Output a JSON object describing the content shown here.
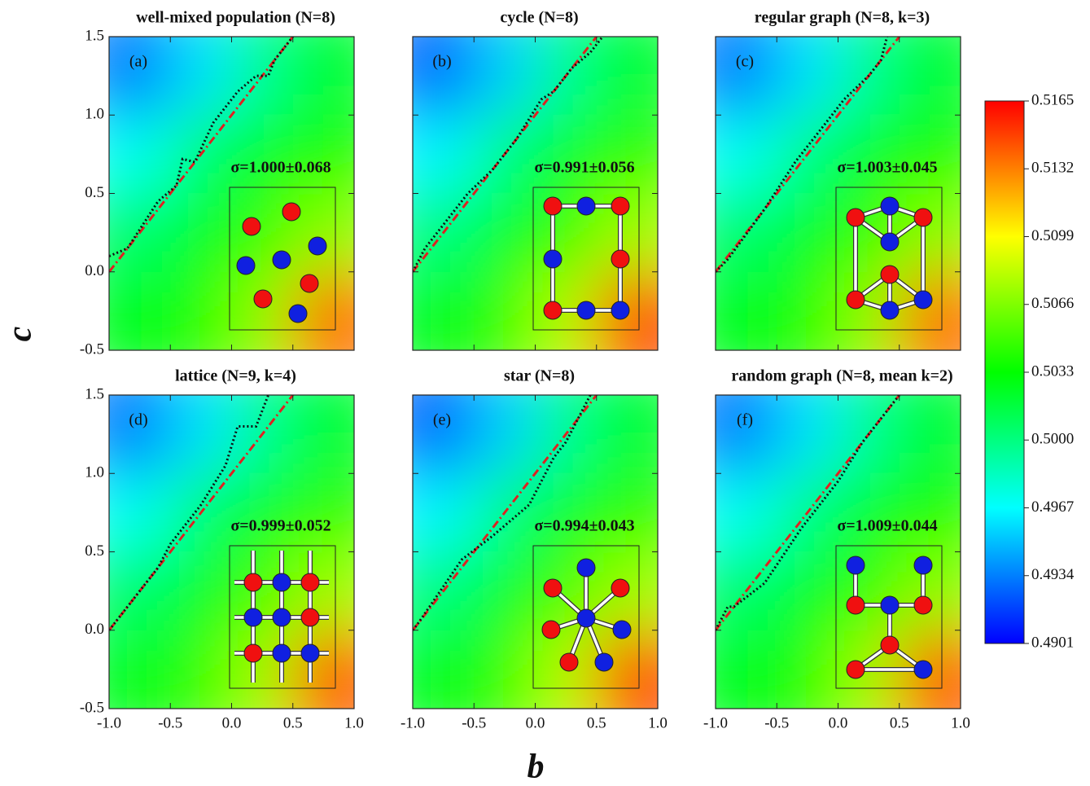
{
  "chart_data": [
    {
      "type": "heatmap",
      "title": "well-mixed population (N=8)",
      "panel": "(a)",
      "annotation": "σ=1.000±0.068",
      "z": [
        [
          0.4935,
          0.496,
          0.4995,
          0.502
        ],
        [
          0.497,
          0.5005,
          0.5025,
          0.504
        ],
        [
          0.5005,
          0.5025,
          0.5045,
          0.507
        ],
        [
          0.5025,
          0.504,
          0.507,
          0.5135
        ]
      ],
      "lines": [
        {
          "color": "#e02020",
          "style": "dashdot",
          "x": [
            -1,
            0.5
          ],
          "y": [
            0,
            1.5
          ]
        },
        {
          "color": "#111111",
          "style": "dotted",
          "x": [
            -1,
            -0.85,
            -0.6,
            -0.45,
            -0.4,
            -0.3,
            -0.15,
            0.05,
            0.2,
            0.3,
            0.35,
            0.5
          ],
          "y": [
            0.1,
            0.15,
            0.45,
            0.55,
            0.72,
            0.7,
            0.95,
            1.15,
            1.25,
            1.25,
            1.35,
            1.5
          ]
        }
      ]
    },
    {
      "type": "heatmap",
      "title": "cycle (N=8)",
      "panel": "(b)",
      "annotation": "σ=0.991±0.056",
      "z": [
        [
          0.493,
          0.4955,
          0.4995,
          0.502
        ],
        [
          0.4965,
          0.5,
          0.5025,
          0.5045
        ],
        [
          0.5,
          0.5025,
          0.5045,
          0.5075
        ],
        [
          0.5025,
          0.5045,
          0.508,
          0.5145
        ]
      ],
      "lines": [
        {
          "color": "#e02020",
          "style": "dashdot",
          "x": [
            -1,
            0.5
          ],
          "y": [
            0,
            1.5
          ]
        },
        {
          "color": "#111111",
          "style": "dotted",
          "x": [
            -1,
            -0.9,
            -0.55,
            -0.35,
            -0.15,
            0.05,
            0.15,
            0.3,
            0.45,
            0.55
          ],
          "y": [
            0,
            0.15,
            0.5,
            0.65,
            0.85,
            1.1,
            1.15,
            1.3,
            1.4,
            1.5
          ]
        }
      ]
    },
    {
      "type": "heatmap",
      "title": "regular graph (N=8, k=3)",
      "panel": "(c)",
      "annotation": "σ=1.003±0.045",
      "z": [
        [
          0.4935,
          0.496,
          0.4995,
          0.502
        ],
        [
          0.497,
          0.5,
          0.5025,
          0.504
        ],
        [
          0.5005,
          0.5025,
          0.5045,
          0.507
        ],
        [
          0.5025,
          0.504,
          0.507,
          0.5135
        ]
      ],
      "lines": [
        {
          "color": "#e02020",
          "style": "dashdot",
          "x": [
            -1,
            0.5
          ],
          "y": [
            0,
            1.5
          ]
        },
        {
          "color": "#111111",
          "style": "dotted",
          "x": [
            -1,
            -0.9,
            -0.6,
            -0.35,
            -0.1,
            0.05,
            0.25,
            0.35,
            0.4
          ],
          "y": [
            0,
            0.08,
            0.4,
            0.7,
            0.95,
            1.1,
            1.25,
            1.35,
            1.5
          ]
        }
      ]
    },
    {
      "type": "heatmap",
      "title": "lattice (N=9, k=4)",
      "panel": "(d)",
      "annotation": "σ=0.999±0.052",
      "z": [
        [
          0.4935,
          0.496,
          0.4995,
          0.502
        ],
        [
          0.497,
          0.5005,
          0.5025,
          0.5045
        ],
        [
          0.5005,
          0.5025,
          0.505,
          0.5075
        ],
        [
          0.5025,
          0.5045,
          0.5075,
          0.514
        ]
      ],
      "lines": [
        {
          "color": "#e02020",
          "style": "dashdot",
          "x": [
            -1,
            0.5
          ],
          "y": [
            0,
            1.5
          ]
        },
        {
          "color": "#111111",
          "style": "dotted",
          "x": [
            -1,
            -0.9,
            -0.6,
            -0.5,
            -0.25,
            -0.05,
            0.05,
            0.2,
            0.3
          ],
          "y": [
            0,
            0.1,
            0.4,
            0.55,
            0.8,
            1.05,
            1.3,
            1.3,
            1.5
          ]
        }
      ]
    },
    {
      "type": "heatmap",
      "title": "star (N=8)",
      "panel": "(e)",
      "annotation": "σ=0.994±0.043",
      "z": [
        [
          0.493,
          0.4955,
          0.4995,
          0.502
        ],
        [
          0.4965,
          0.5,
          0.5025,
          0.5045
        ],
        [
          0.5,
          0.5025,
          0.505,
          0.5075
        ],
        [
          0.5025,
          0.5045,
          0.508,
          0.5145
        ]
      ],
      "lines": [
        {
          "color": "#e02020",
          "style": "dashdot",
          "x": [
            -1,
            0.5
          ],
          "y": [
            0,
            1.5
          ]
        },
        {
          "color": "#111111",
          "style": "dotted",
          "x": [
            -1,
            -0.95,
            -0.6,
            -0.35,
            -0.05,
            0.05,
            0.15,
            0.25,
            0.45
          ],
          "y": [
            0,
            0.05,
            0.45,
            0.6,
            0.8,
            0.95,
            1.1,
            1.2,
            1.5
          ]
        }
      ]
    },
    {
      "type": "heatmap",
      "title": "random graph (N=8, mean k=2)",
      "panel": "(f)",
      "annotation": "σ=1.009±0.044",
      "z": [
        [
          0.4935,
          0.496,
          0.4995,
          0.502
        ],
        [
          0.497,
          0.5,
          0.5025,
          0.504
        ],
        [
          0.5005,
          0.5025,
          0.5045,
          0.507
        ],
        [
          0.5025,
          0.504,
          0.5075,
          0.514
        ]
      ],
      "lines": [
        {
          "color": "#e02020",
          "style": "dashdot",
          "x": [
            -1,
            0.5
          ],
          "y": [
            0,
            1.5
          ]
        },
        {
          "color": "#111111",
          "style": "dotted",
          "x": [
            -1,
            -0.9,
            -0.85,
            -0.6,
            -0.3,
            0,
            0.2,
            0.35,
            0.5
          ],
          "y": [
            0,
            0.15,
            0.15,
            0.3,
            0.65,
            0.95,
            1.2,
            1.35,
            1.5
          ]
        }
      ]
    }
  ],
  "axes": {
    "xlabel": "b",
    "ylabel": "c",
    "xlim": [
      -1,
      1
    ],
    "ylim": [
      -0.5,
      1.5
    ],
    "xticks": [
      {
        "value": -1,
        "label": "-1.0"
      },
      -0.5,
      {
        "value": 0,
        "label": "0.0"
      },
      0.5,
      {
        "value": 1,
        "label": "1.0"
      }
    ],
    "yticks": [
      -0.5,
      {
        "value": 0,
        "label": "0.0"
      },
      0.5,
      {
        "value": 1,
        "label": "1.0"
      },
      1.5
    ]
  },
  "colorbar": {
    "zlim": [
      0.4901,
      0.5165
    ],
    "colors": [
      "#0000ff",
      "#00ffff",
      "#00ff00",
      "#ffff00",
      "#ff0000"
    ],
    "ticks": [
      0.4901,
      0.4934,
      0.4967,
      {
        "value": 0.5,
        "label": "0.5000"
      },
      0.5033,
      0.5066,
      0.5099,
      0.5132,
      0.5165
    ]
  }
}
